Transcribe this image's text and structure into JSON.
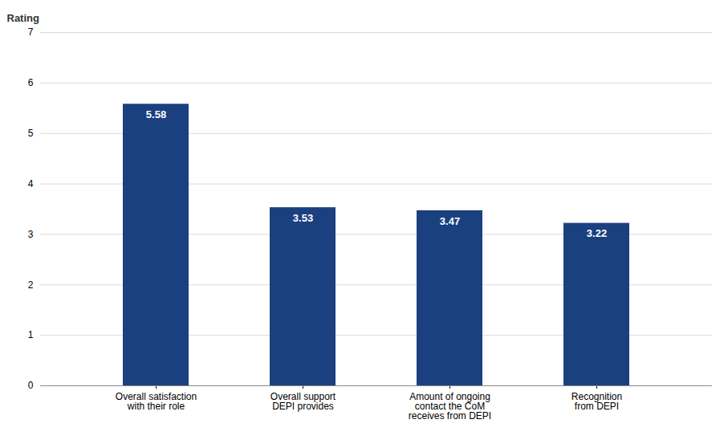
{
  "chart_data": {
    "type": "bar",
    "ylabel": "Rating",
    "categories": [
      "Overall satisfaction\nwith their role",
      "Overall support\nDEPI provides",
      "Amount of ongoing\ncontact the CoM\nreceives from DEPI",
      "Recognition\nfrom DEPI"
    ],
    "values": [
      5.58,
      3.53,
      3.47,
      3.22
    ],
    "color": "#1b4080",
    "ylim": [
      0,
      7
    ],
    "yticks": [
      0,
      1,
      2,
      3,
      4,
      5,
      6,
      7
    ],
    "grid": true,
    "data_labels": true
  }
}
